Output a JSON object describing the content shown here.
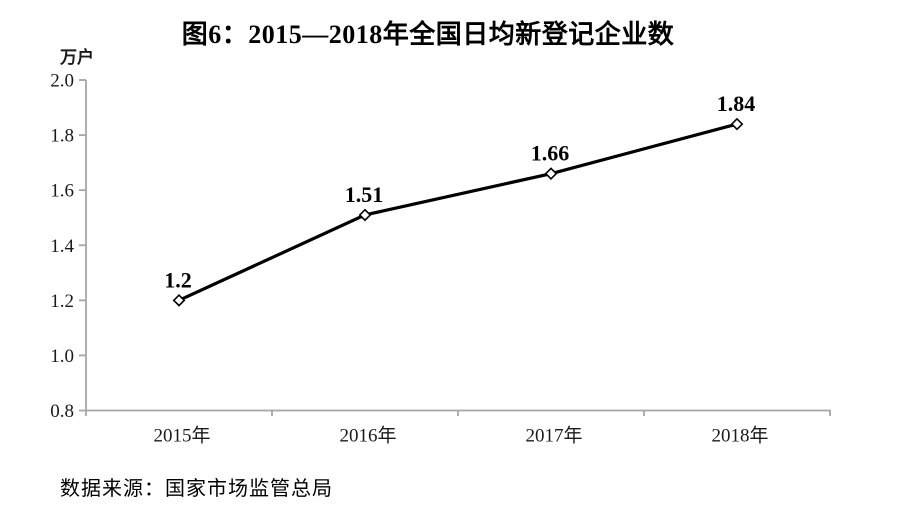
{
  "header": {
    "title": "图6：2015—2018年全国日均新登记企业数"
  },
  "unit_label": "万户",
  "source_note": "数据来源：国家市场监管总局",
  "colors": {
    "axis": "#a6a6a6",
    "line": "#000000",
    "marker_fill": "#ffffff",
    "marker_stroke": "#000000",
    "text": "#1a1a1a"
  },
  "chart_data": {
    "type": "line",
    "title": "图6：2015—2018年全国日均新登记企业数",
    "categories": [
      "2015年",
      "2016年",
      "2017年",
      "2018年"
    ],
    "values": [
      1.2,
      1.51,
      1.66,
      1.84
    ],
    "value_labels": [
      "1.2",
      "1.51",
      "1.66",
      "1.84"
    ],
    "xlabel": "",
    "ylabel": "万户",
    "ylim": [
      0.8,
      2.0
    ],
    "ytick_step": 0.2,
    "ytick_labels": [
      "0.8",
      "1.0",
      "1.2",
      "1.4",
      "1.6",
      "1.8",
      "2.0"
    ],
    "grid": false,
    "legend": null,
    "marker": "diamond-open",
    "series_color": "#000000"
  }
}
